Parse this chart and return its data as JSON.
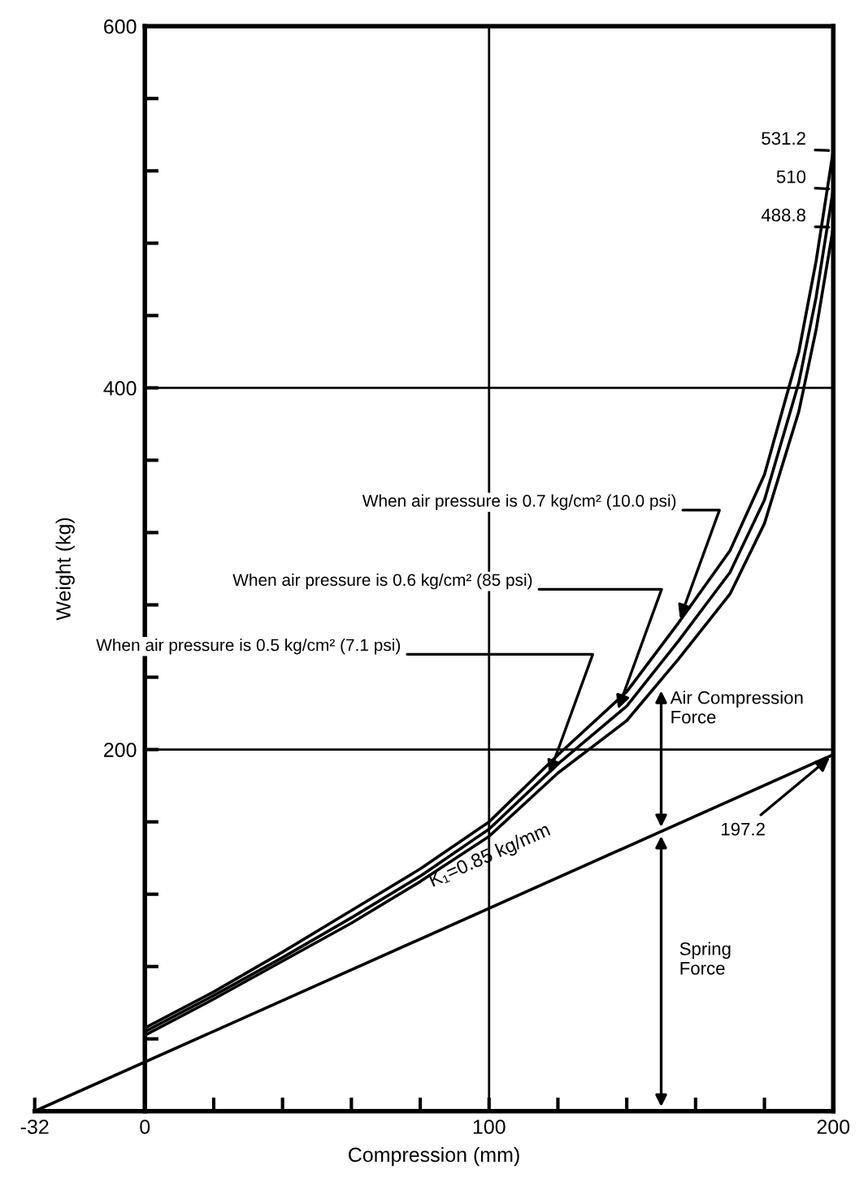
{
  "chart_data": {
    "type": "line",
    "xlabel": "Compression (mm)",
    "ylabel": "Weight (kg)",
    "series": [
      {
        "x": [
          0,
          20,
          40,
          60,
          80,
          100,
          120,
          140,
          155,
          170,
          180,
          190,
          195,
          200
        ],
        "values": [
          46,
          66,
          88,
          111,
          134,
          160,
          197,
          232,
          270,
          310,
          352,
          420,
          470,
          531.2
        ],
        "color": "#000000"
      },
      {
        "x": [
          0,
          20,
          40,
          60,
          80,
          100,
          120,
          140,
          155,
          170,
          180,
          190,
          195,
          200
        ],
        "values": [
          44,
          64,
          85,
          107,
          130,
          156,
          192,
          224,
          260,
          298,
          338,
          403,
          450,
          510
        ],
        "color": "#000000"
      },
      {
        "x": [
          0,
          20,
          40,
          60,
          80,
          100,
          120,
          140,
          155,
          170,
          180,
          190,
          195,
          200
        ],
        "values": [
          42,
          62,
          83,
          104,
          127,
          152,
          187,
          216,
          250,
          286,
          325,
          387,
          432,
          488.8
        ],
        "color": "#000000"
      },
      {
        "x": [
          -32,
          200
        ],
        "values": [
          0,
          197.2
        ],
        "color": "#000000"
      }
    ],
    "xlim": [
      -32,
      200
    ],
    "ylim": [
      0,
      600
    ],
    "xticks": [
      -32,
      0,
      {
        "value": 20,
        "label": null
      },
      {
        "value": 40,
        "label": null
      },
      {
        "value": 60,
        "label": null
      },
      {
        "value": 80,
        "label": null
      },
      100,
      {
        "value": 120,
        "label": null
      },
      {
        "value": 140,
        "label": null
      },
      {
        "value": 160,
        "label": null
      },
      {
        "value": 180,
        "label": null
      },
      200
    ],
    "yticks": [
      {
        "value": 40,
        "label": null
      },
      {
        "value": 80,
        "label": null
      },
      {
        "value": 120,
        "label": null
      },
      {
        "value": 160,
        "label": null
      },
      200,
      {
        "value": 240,
        "label": null
      },
      {
        "value": 280,
        "label": null
      },
      {
        "value": 320,
        "label": null
      },
      {
        "value": 360,
        "label": null
      },
      400,
      {
        "value": 440,
        "label": null
      },
      {
        "value": 480,
        "label": null
      },
      {
        "value": 520,
        "label": null
      },
      {
        "value": 560,
        "label": null
      },
      600
    ],
    "ref_lines": [
      {
        "axis": "x",
        "value": 100
      },
      {
        "axis": "y",
        "value": 200
      },
      {
        "axis": "y",
        "value": 400
      }
    ],
    "grid": false,
    "marker": "none",
    "line_style": "solid",
    "annotations": [
      {
        "text": "When air pressure is 0.7 kg/cm² (10.0 psi)",
        "x": 155,
        "y": 270
      },
      {
        "text": "When air pressure is 0.6 kg/cm² (85 psi)",
        "x": 137,
        "y": 220
      },
      {
        "text": "When air pressure is 0.5 kg/cm² (7.1 psi)",
        "x": 117,
        "y": 184
      },
      {
        "text": "531.2",
        "x": 200,
        "y": 531.2
      },
      {
        "text": "510",
        "x": 200,
        "y": 510
      },
      {
        "text": "488.8",
        "x": 200,
        "y": 488.8
      },
      {
        "text": "197.2",
        "x": 200,
        "y": 197.2
      },
      "K₁=0.85 kg/mm",
      {
        "text": "Air Compression\nForce",
        "x": 150,
        "y": 235
      },
      "Spring\nForce"
    ]
  }
}
